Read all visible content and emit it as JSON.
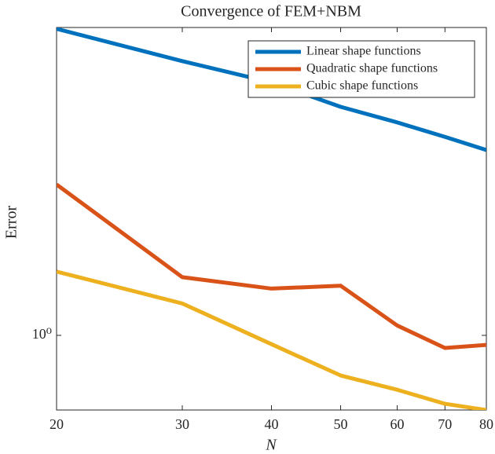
{
  "chart_data": {
    "type": "line",
    "title": "Convergence of FEM+NBM",
    "x_label": "N",
    "y_label": "Error",
    "x": [
      20,
      30,
      40,
      50,
      60,
      70,
      80
    ],
    "series": [
      {
        "name": "Linear shape functions",
        "color": "#0072BD",
        "values": [
          2.5,
          2.27,
          2.13,
          1.98,
          1.89,
          1.81,
          1.74
        ]
      },
      {
        "name": "Quadratic shape functions",
        "color": "#D95319",
        "values": [
          1.57,
          1.19,
          1.15,
          1.16,
          1.03,
          0.963,
          0.972
        ]
      },
      {
        "name": "Cubic shape functions",
        "color": "#EDB120",
        "values": [
          1.21,
          1.1,
          0.974,
          0.887,
          0.85,
          0.815,
          0.8
        ]
      }
    ],
    "xlim": [
      20,
      80
    ],
    "ylim": [
      0.8,
      2.51
    ],
    "xticks": [
      20,
      30,
      40,
      50,
      60,
      70,
      80
    ],
    "yticks": [
      {
        "value": 1,
        "label": "10⁰"
      }
    ],
    "x_log": true,
    "y_log": true,
    "grid": false,
    "legend": "northeast"
  }
}
